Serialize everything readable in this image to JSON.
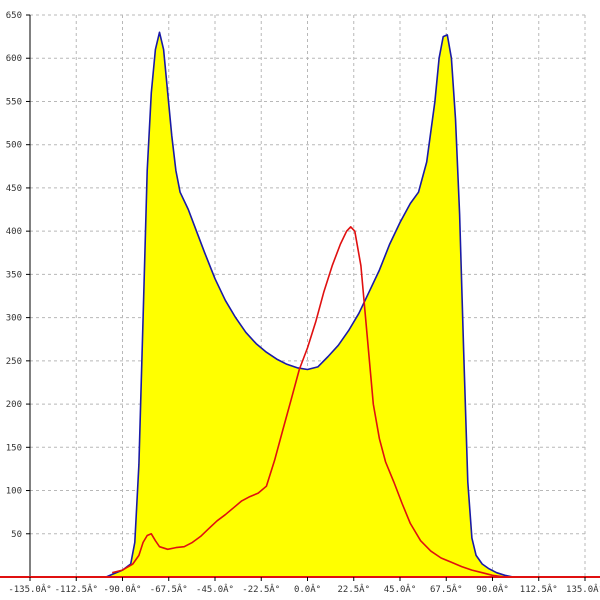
{
  "chart_data": {
    "type": "area",
    "title": "",
    "xlabel": "",
    "ylabel": "",
    "xlim": [
      -135,
      135
    ],
    "ylim": [
      0,
      650
    ],
    "grid": true,
    "x_ticks": [
      {
        "value": -135,
        "label": "-135.0Â°"
      },
      {
        "value": -112.5,
        "label": "-112.5Â°"
      },
      {
        "value": -90,
        "label": "-90.0Â°"
      },
      {
        "value": -67.5,
        "label": "-67.5Â°"
      },
      {
        "value": -45,
        "label": "-45.0Â°"
      },
      {
        "value": -22.5,
        "label": "-22.5Â°"
      },
      {
        "value": 0,
        "label": "0.0Â°"
      },
      {
        "value": 22.5,
        "label": "22.5Â°"
      },
      {
        "value": 45,
        "label": "45.0Â°"
      },
      {
        "value": 67.5,
        "label": "67.5Â°"
      },
      {
        "value": 90,
        "label": "90.0Â°"
      },
      {
        "value": 112.5,
        "label": "112.5Â°"
      },
      {
        "value": 135,
        "label": "135.0Â°"
      }
    ],
    "y_ticks": [
      {
        "value": 50,
        "label": "50"
      },
      {
        "value": 100,
        "label": "100"
      },
      {
        "value": 150,
        "label": "150"
      },
      {
        "value": 200,
        "label": "200"
      },
      {
        "value": 250,
        "label": "250"
      },
      {
        "value": 300,
        "label": "300"
      },
      {
        "value": 350,
        "label": "350"
      },
      {
        "value": 400,
        "label": "400"
      },
      {
        "value": 450,
        "label": "450"
      },
      {
        "value": 500,
        "label": "500"
      },
      {
        "value": 550,
        "label": "550"
      },
      {
        "value": 600,
        "label": "600"
      },
      {
        "value": 650,
        "label": "650"
      }
    ],
    "series": [
      {
        "color": "#1a1aa8",
        "fill": "#ffff00",
        "points": [
          [
            -98,
            0
          ],
          [
            -95,
            3
          ],
          [
            -90,
            8
          ],
          [
            -86,
            15
          ],
          [
            -84,
            40
          ],
          [
            -82,
            130
          ],
          [
            -80,
            300
          ],
          [
            -78,
            470
          ],
          [
            -76,
            560
          ],
          [
            -74,
            610
          ],
          [
            -72,
            630
          ],
          [
            -70,
            610
          ],
          [
            -68,
            560
          ],
          [
            -66,
            510
          ],
          [
            -64,
            470
          ],
          [
            -62,
            445
          ],
          [
            -58,
            425
          ],
          [
            -54,
            400
          ],
          [
            -50,
            375
          ],
          [
            -45,
            345
          ],
          [
            -40,
            320
          ],
          [
            -35,
            300
          ],
          [
            -30,
            283
          ],
          [
            -25,
            270
          ],
          [
            -20,
            260
          ],
          [
            -15,
            252
          ],
          [
            -10,
            246
          ],
          [
            -5,
            242
          ],
          [
            0,
            240
          ],
          [
            5,
            243
          ],
          [
            10,
            255
          ],
          [
            15,
            268
          ],
          [
            20,
            285
          ],
          [
            25,
            305
          ],
          [
            30,
            330
          ],
          [
            35,
            355
          ],
          [
            40,
            385
          ],
          [
            45,
            410
          ],
          [
            50,
            432
          ],
          [
            54,
            445
          ],
          [
            58,
            480
          ],
          [
            62,
            550
          ],
          [
            64,
            600
          ],
          [
            66,
            625
          ],
          [
            68,
            627
          ],
          [
            70,
            600
          ],
          [
            72,
            530
          ],
          [
            74,
            420
          ],
          [
            76,
            260
          ],
          [
            78,
            110
          ],
          [
            80,
            45
          ],
          [
            82,
            25
          ],
          [
            85,
            15
          ],
          [
            88,
            10
          ],
          [
            92,
            5
          ],
          [
            96,
            2
          ],
          [
            100,
            0
          ]
        ]
      },
      {
        "color": "#e01010",
        "points": [
          [
            -95,
            5
          ],
          [
            -90,
            8
          ],
          [
            -85,
            15
          ],
          [
            -82,
            25
          ],
          [
            -80,
            40
          ],
          [
            -78,
            48
          ],
          [
            -76,
            50
          ],
          [
            -74,
            42
          ],
          [
            -72,
            35
          ],
          [
            -68,
            32
          ],
          [
            -64,
            34
          ],
          [
            -60,
            35
          ],
          [
            -56,
            40
          ],
          [
            -52,
            47
          ],
          [
            -48,
            56
          ],
          [
            -44,
            65
          ],
          [
            -40,
            72
          ],
          [
            -36,
            80
          ],
          [
            -32,
            88
          ],
          [
            -28,
            93
          ],
          [
            -24,
            97
          ],
          [
            -20,
            105
          ],
          [
            -16,
            135
          ],
          [
            -12,
            170
          ],
          [
            -8,
            205
          ],
          [
            -4,
            240
          ],
          [
            0,
            265
          ],
          [
            4,
            295
          ],
          [
            8,
            330
          ],
          [
            12,
            360
          ],
          [
            16,
            385
          ],
          [
            19,
            400
          ],
          [
            21,
            405
          ],
          [
            23,
            400
          ],
          [
            26,
            360
          ],
          [
            29,
            280
          ],
          [
            32,
            200
          ],
          [
            35,
            160
          ],
          [
            38,
            133
          ],
          [
            42,
            110
          ],
          [
            46,
            85
          ],
          [
            50,
            62
          ],
          [
            55,
            42
          ],
          [
            60,
            30
          ],
          [
            65,
            22
          ],
          [
            70,
            17
          ],
          [
            75,
            12
          ],
          [
            80,
            8
          ],
          [
            85,
            5
          ],
          [
            90,
            2
          ],
          [
            96,
            0
          ]
        ]
      }
    ]
  }
}
